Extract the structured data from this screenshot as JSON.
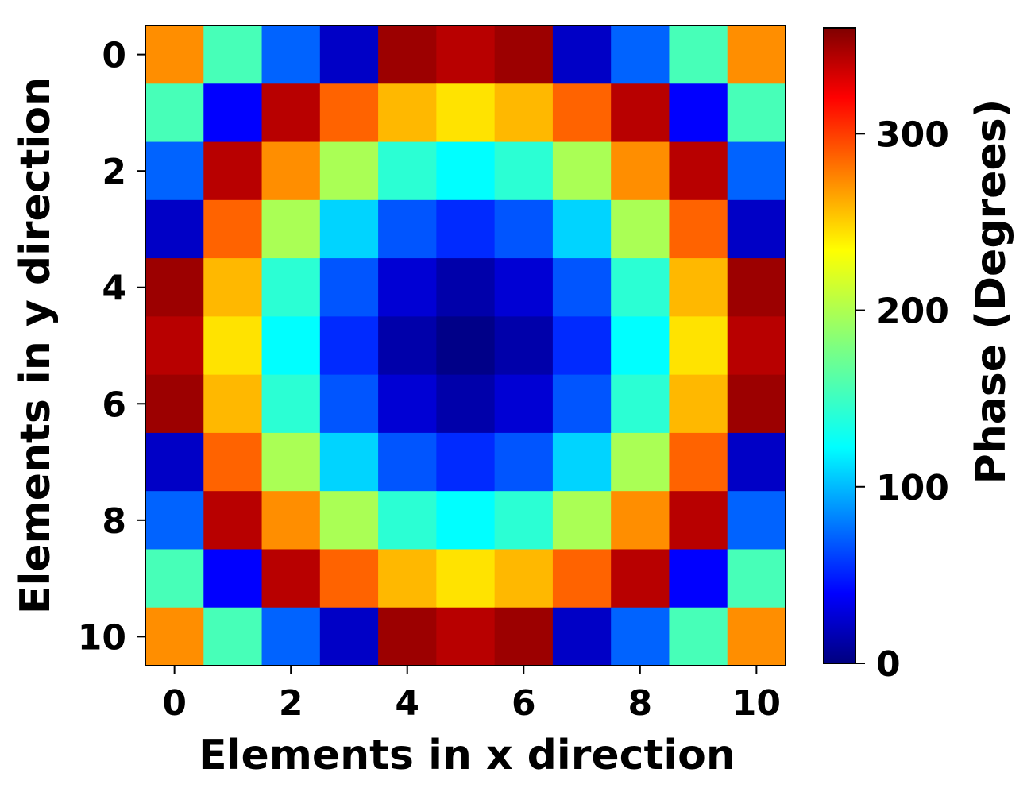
{
  "chart_data": {
    "type": "heatmap",
    "title": "",
    "xlabel": "Elements in x direction",
    "ylabel": "Elements in y direction",
    "x_ticks": [
      0,
      2,
      4,
      6,
      8,
      10
    ],
    "y_ticks": [
      0,
      2,
      4,
      6,
      8,
      10
    ],
    "x_tick_labels": [
      "0",
      "2",
      "4",
      "6",
      "8",
      "10"
    ],
    "y_tick_labels": [
      "0",
      "2",
      "4",
      "6",
      "8",
      "10"
    ],
    "colormap": "jet",
    "colorbar": {
      "label": "Phase (Degrees)",
      "range": [
        0,
        360
      ],
      "ticks": [
        0,
        100,
        200,
        300
      ],
      "tick_labels": [
        "0",
        "100",
        "200",
        "300"
      ]
    },
    "values": [
      [
        265,
        160,
        80,
        25,
        350,
        340,
        350,
        25,
        80,
        160,
        265
      ],
      [
        160,
        45,
        340,
        280,
        250,
        235,
        250,
        280,
        340,
        45,
        160
      ],
      [
        80,
        340,
        265,
        195,
        150,
        135,
        150,
        195,
        265,
        340,
        80
      ],
      [
        25,
        280,
        195,
        120,
        75,
        60,
        75,
        120,
        195,
        280,
        25
      ],
      [
        350,
        250,
        150,
        75,
        30,
        15,
        30,
        75,
        150,
        250,
        350
      ],
      [
        340,
        235,
        135,
        60,
        15,
        3,
        15,
        60,
        135,
        235,
        340
      ],
      [
        350,
        250,
        150,
        75,
        30,
        15,
        30,
        75,
        150,
        250,
        350
      ],
      [
        25,
        280,
        195,
        120,
        75,
        60,
        75,
        120,
        195,
        280,
        25
      ],
      [
        80,
        340,
        265,
        195,
        150,
        135,
        150,
        195,
        265,
        340,
        80
      ],
      [
        160,
        45,
        340,
        280,
        250,
        235,
        250,
        280,
        340,
        45,
        160
      ],
      [
        265,
        160,
        80,
        25,
        350,
        340,
        350,
        25,
        80,
        160,
        265
      ]
    ]
  }
}
